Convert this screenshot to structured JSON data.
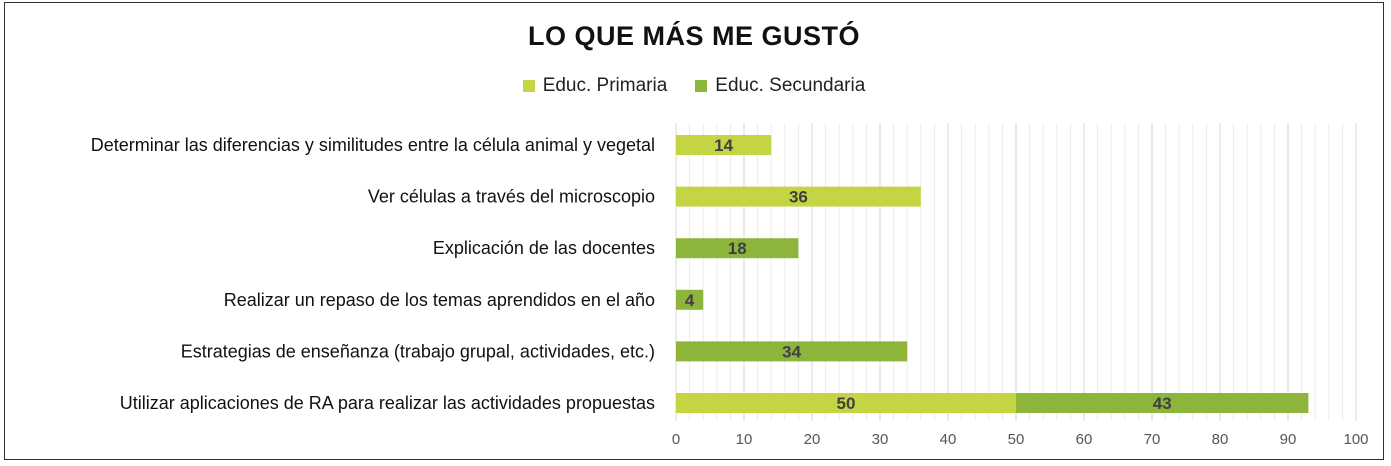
{
  "chart_data": {
    "type": "bar",
    "orientation": "horizontal",
    "stacked": true,
    "title": "LO QUE MÁS ME GUSTÓ",
    "categories": [
      "Determinar las diferencias y similitudes entre la célula animal y vegetal",
      "Ver células a través del microscopio",
      "Explicación de las docentes",
      "Realizar un repaso de los temas aprendidos en el año",
      "Estrategias de enseñanza (trabajo grupal, actividades, etc.)",
      "Utilizar aplicaciones de RA para realizar las actividades propuestas"
    ],
    "series": [
      {
        "name": "Educ. Primaria",
        "color": "#c5d443",
        "values": [
          14,
          36,
          0,
          0,
          0,
          50
        ]
      },
      {
        "name": "Educ. Secundaria",
        "color": "#8db53c",
        "values": [
          0,
          0,
          18,
          4,
          34,
          43
        ]
      }
    ],
    "xlim": [
      0,
      100
    ],
    "xticks": [
      0,
      10,
      20,
      30,
      40,
      50,
      60,
      70,
      80,
      90,
      100
    ],
    "minor_gridlines": true,
    "legend_position": "top"
  }
}
